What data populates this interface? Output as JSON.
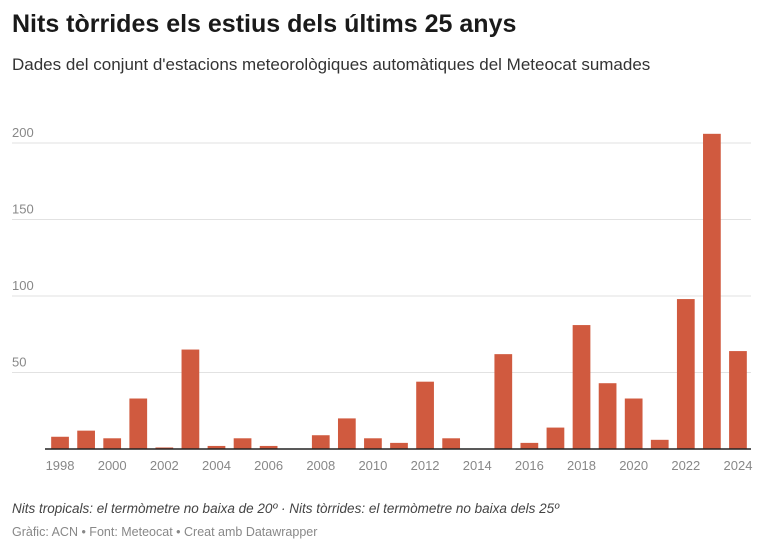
{
  "chart_data": {
    "type": "bar",
    "title": "Nits tòrrides els estius dels últims 25 anys",
    "subtitle": "Dades del conjunt d'estacions meteorològiques automàtiques del Meteocat sumades",
    "categories": [
      "1998",
      "1999",
      "2000",
      "2001",
      "2002",
      "2003",
      "2004",
      "2005",
      "2006",
      "2007",
      "2008",
      "2009",
      "2010",
      "2011",
      "2012",
      "2013",
      "2014",
      "2015",
      "2016",
      "2017",
      "2018",
      "2019",
      "2020",
      "2021",
      "2022",
      "2023",
      "2024"
    ],
    "values": [
      8,
      12,
      7,
      33,
      1,
      65,
      2,
      7,
      2,
      0,
      9,
      20,
      7,
      4,
      44,
      7,
      0,
      62,
      4,
      14,
      81,
      43,
      33,
      6,
      98,
      206,
      64
    ],
    "x_tick_labels": [
      "1998",
      "2000",
      "2002",
      "2004",
      "2006",
      "2008",
      "2010",
      "2012",
      "2014",
      "2016",
      "2018",
      "2020",
      "2022",
      "2024"
    ],
    "y_ticks": [
      50,
      100,
      150,
      200
    ],
    "ylim": [
      0,
      210
    ],
    "xlabel": "",
    "ylabel": "",
    "grid": true,
    "bar_color": "#d05a3f"
  },
  "footer": {
    "note": "Nits tropicals: el termòmetre no baixa de 20º · Nits tòrrides: el termòmetre no baixa dels 25º",
    "source": "Gràfic: ACN • Font: Meteocat • Creat amb Datawrapper"
  }
}
